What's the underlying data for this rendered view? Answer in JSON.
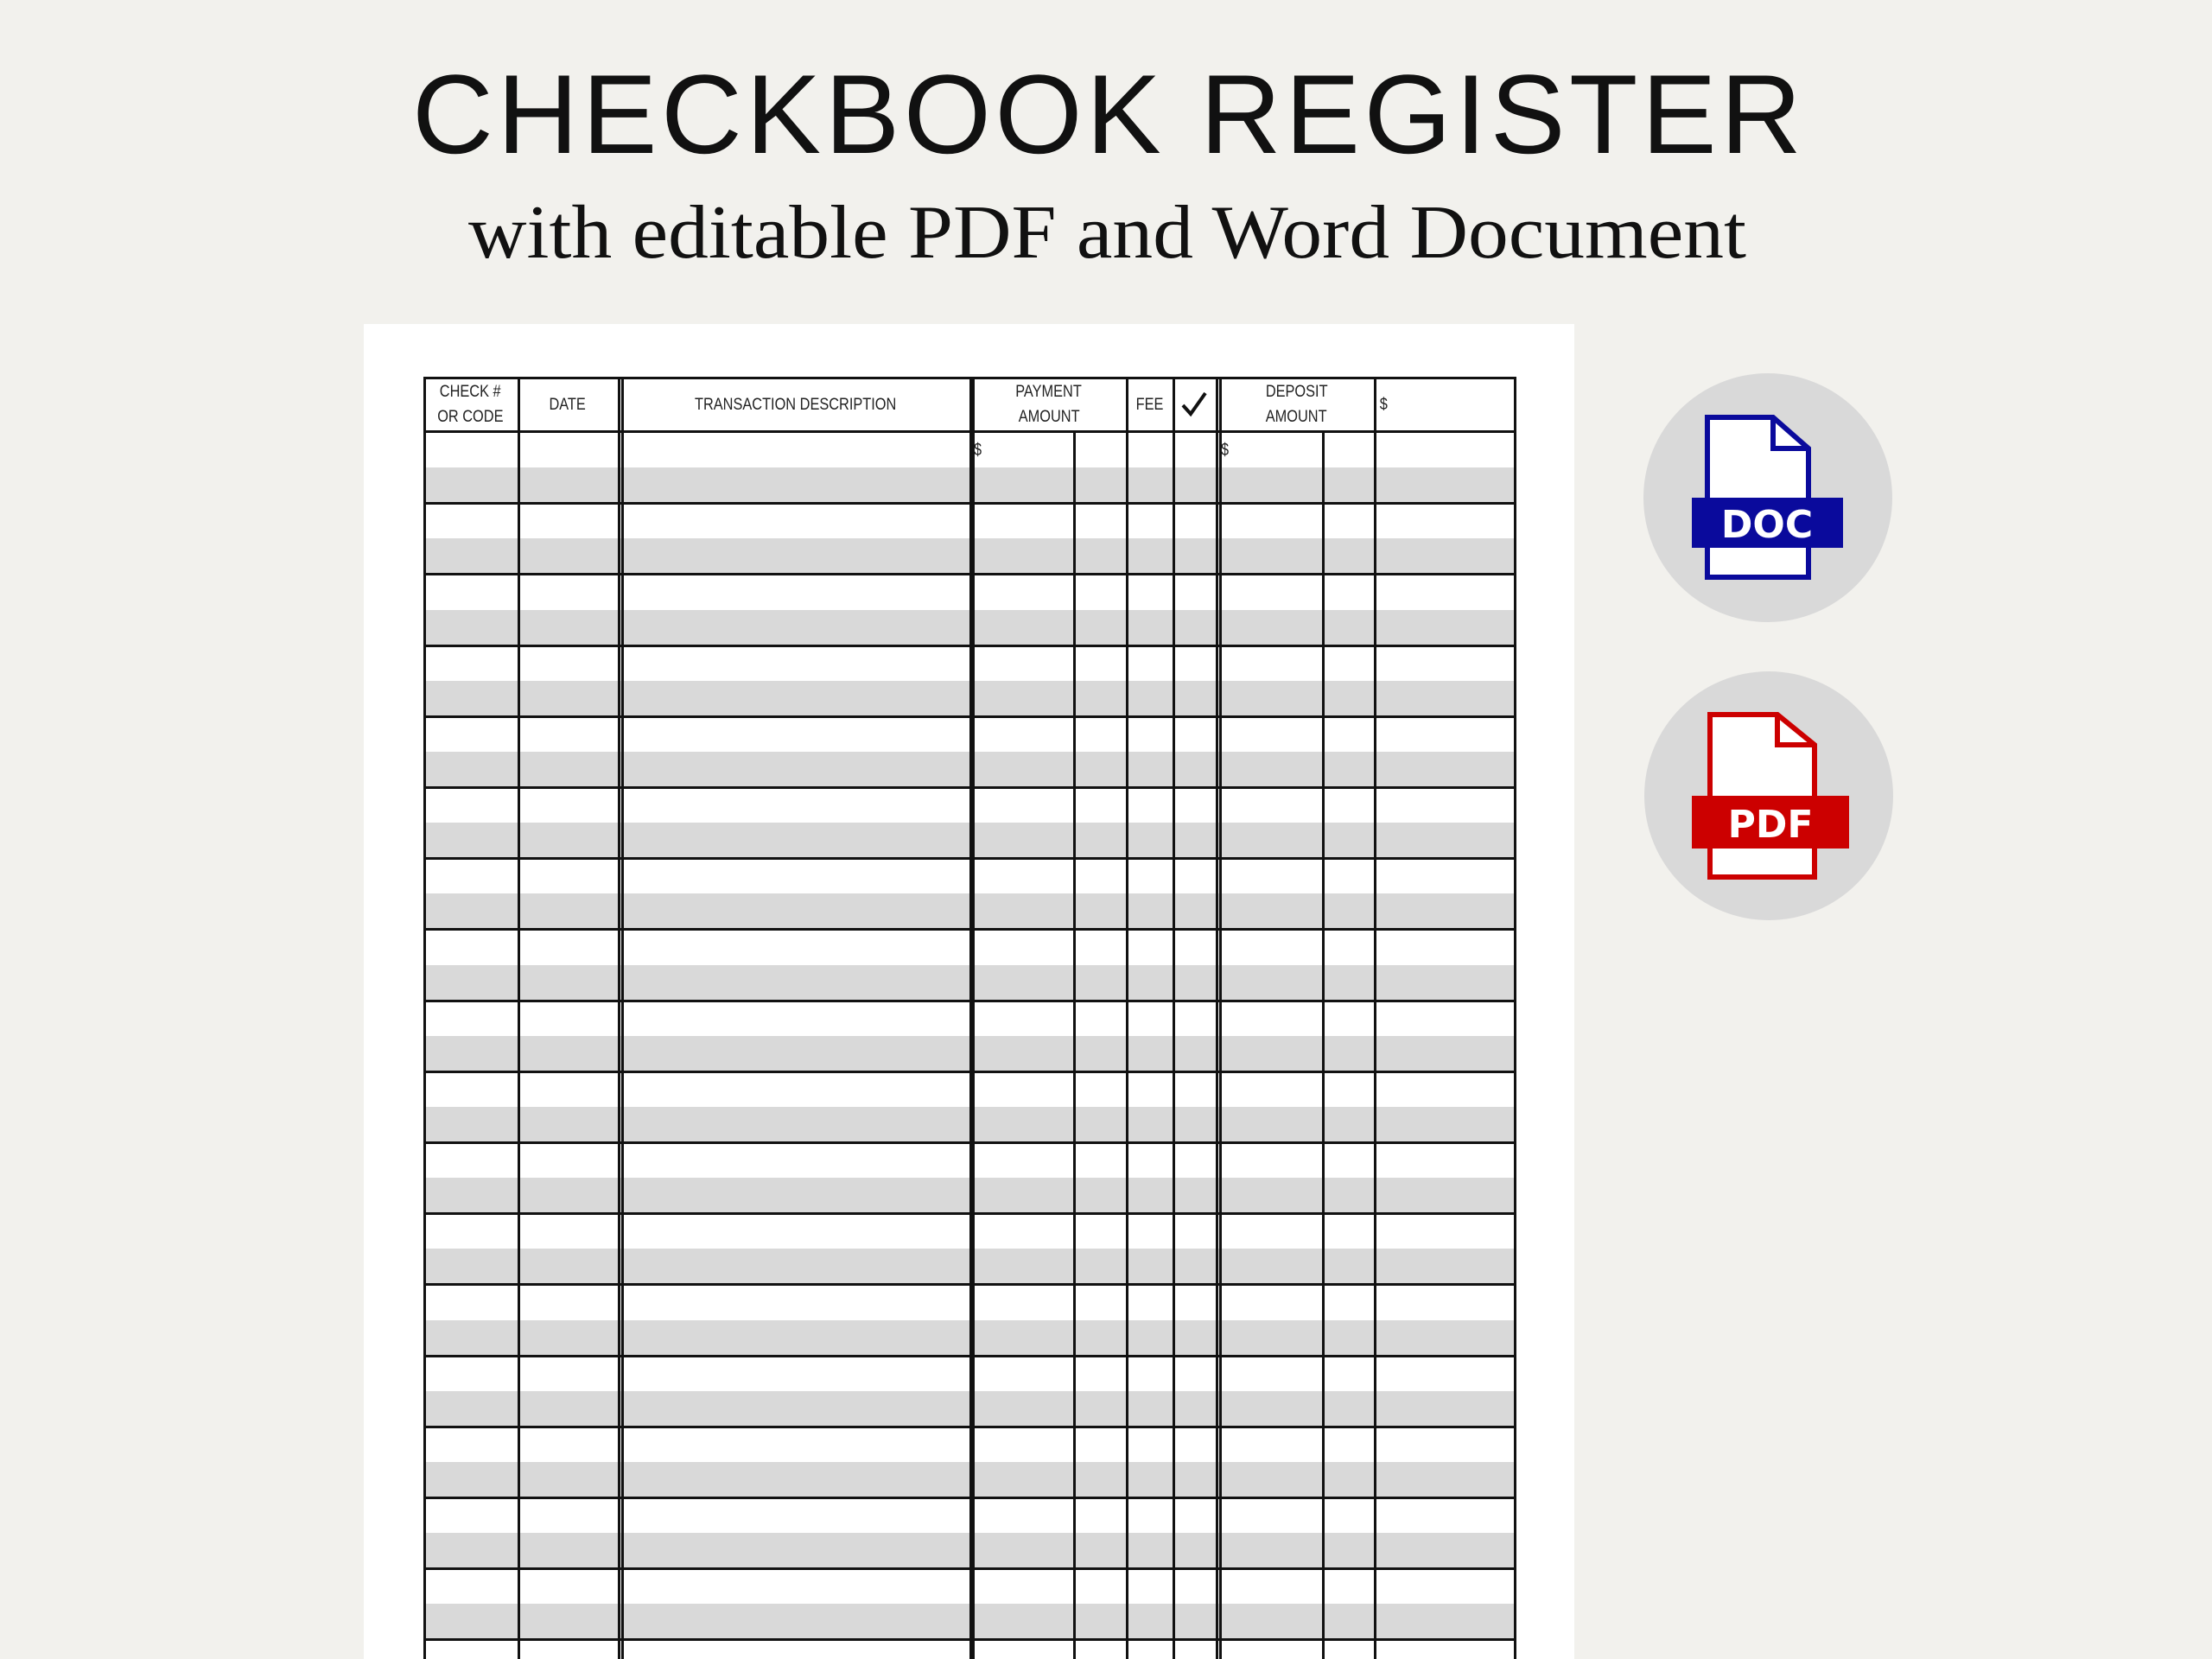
{
  "header": {
    "title": "CHECKBOOK REGISTER",
    "subtitle": "with editable PDF and Word Document"
  },
  "register": {
    "columns": {
      "check_line1": "CHECK #",
      "check_line2": "OR CODE",
      "date": "DATE",
      "description": "TRANSACTION DESCRIPTION",
      "payment_line1": "PAYMENT",
      "payment_line2": "AMOUNT",
      "fee": "FEE",
      "cleared_icon": "checkmark-icon",
      "deposit_line1": "DEPOSIT",
      "deposit_line2": "AMOUNT",
      "balance": "$"
    },
    "currency_symbol": "$",
    "stripe_color": "#d9d9d9"
  },
  "formats": [
    {
      "label": "DOC",
      "icon": "doc-file-icon",
      "color": "#0a0a9c"
    },
    {
      "label": "PDF",
      "icon": "pdf-file-icon",
      "color": "#cc0000"
    }
  ],
  "colors": {
    "background": "#f2f1ed",
    "badge_circle": "#d9d9d9"
  }
}
